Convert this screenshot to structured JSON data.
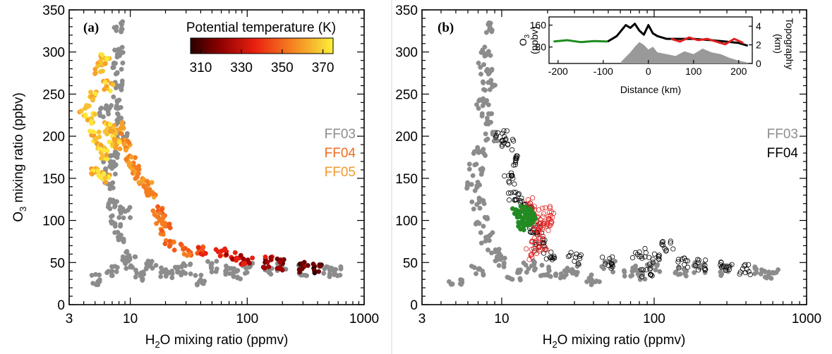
{
  "chart_data": [
    {
      "type": "scatter",
      "panel_label": "(a)",
      "xlabel_main": "H",
      "xlabel_sub": "2",
      "xlabel_rest": "O mixing ratio (ppmv)",
      "ylabel_main": "O",
      "ylabel_sub": "3",
      "ylabel_rest": " mixing ratio (ppbv)",
      "x_scale": "log",
      "xlim": [
        3,
        1000
      ],
      "ylim": [
        0,
        350
      ],
      "x_ticks": [
        "3",
        "10",
        "100",
        "1000"
      ],
      "x_tick_values": [
        3,
        10,
        100,
        1000
      ],
      "y_ticks": [
        "0",
        "50",
        "100",
        "150",
        "200",
        "250",
        "300",
        "350"
      ],
      "y_tick_values": [
        0,
        50,
        100,
        150,
        200,
        250,
        300,
        350
      ],
      "colorbar": {
        "title": "Potential temperature (K)",
        "ticks": [
          "310",
          "330",
          "350",
          "370"
        ],
        "range": [
          305,
          375
        ]
      },
      "legend": [
        {
          "label": "FF03",
          "color": "#8c8c8c"
        },
        {
          "label": "FF04",
          "color": "#f26b1d"
        },
        {
          "label": "FF05",
          "color": "#f39a2e"
        }
      ],
      "series": [
        {
          "name": "FF03",
          "color": "#8c8c8c",
          "points": [
            [
              8,
              330
            ],
            [
              8,
              300
            ],
            [
              7.8,
              280
            ],
            [
              8.2,
              260
            ],
            [
              7.5,
              240
            ],
            [
              8,
              220
            ],
            [
              8.5,
              200
            ],
            [
              7.2,
              180
            ],
            [
              6.8,
              160
            ],
            [
              6.5,
              140
            ],
            [
              7,
              120
            ],
            [
              7.5,
              100
            ],
            [
              8,
              80
            ],
            [
              9,
              60
            ],
            [
              10,
              50
            ],
            [
              15,
              45
            ],
            [
              20,
              40
            ],
            [
              30,
              42
            ],
            [
              50,
              45
            ],
            [
              70,
              40
            ],
            [
              100,
              42
            ],
            [
              150,
              40
            ],
            [
              200,
              45
            ],
            [
              300,
              40
            ],
            [
              500,
              38
            ],
            [
              600,
              38
            ],
            [
              5,
              30
            ],
            [
              7,
              40
            ],
            [
              12,
              35
            ],
            [
              25,
              38
            ],
            [
              40,
              30
            ],
            [
              80,
              35
            ],
            [
              6,
              230
            ],
            [
              6.5,
              170
            ],
            [
              9,
              110
            ]
          ]
        },
        {
          "name": "FF04",
          "color": "#e03010",
          "points": [
            [
              8,
              210
            ],
            [
              9,
              190
            ],
            [
              10,
              170
            ],
            [
              11,
              160
            ],
            [
              12,
              150
            ],
            [
              14,
              140
            ],
            [
              15,
              130
            ],
            [
              17,
              110
            ],
            [
              18,
              100
            ],
            [
              20,
              90
            ],
            [
              22,
              70
            ],
            [
              30,
              65
            ],
            [
              40,
              62
            ],
            [
              60,
              60
            ],
            [
              80,
              55
            ],
            [
              100,
              52
            ],
            [
              150,
              50
            ],
            [
              200,
              48
            ],
            [
              300,
              45
            ],
            [
              400,
              42
            ]
          ]
        },
        {
          "name": "FF05",
          "color": "#f5c031",
          "points": [
            [
              4,
              230
            ],
            [
              4.5,
              220
            ],
            [
              5,
              250
            ],
            [
              5.5,
              280
            ],
            [
              6,
              290
            ],
            [
              6.5,
              260
            ],
            [
              5,
              200
            ],
            [
              5.5,
              190
            ],
            [
              6,
              180
            ],
            [
              6.5,
              210
            ],
            [
              7,
              200
            ],
            [
              7.5,
              190
            ],
            [
              6,
              150
            ],
            [
              5,
              160
            ]
          ]
        }
      ]
    },
    {
      "type": "scatter",
      "panel_label": "(b)",
      "xlabel_main": "H",
      "xlabel_sub": "2",
      "xlabel_rest": "O mixing ratio (ppmv)",
      "x_scale": "log",
      "xlim": [
        3,
        1000
      ],
      "ylim": [
        0,
        350
      ],
      "x_ticks": [
        "3",
        "10",
        "100",
        "1000"
      ],
      "x_tick_values": [
        3,
        10,
        100,
        1000
      ],
      "legend": [
        {
          "label": "FF03",
          "color": "#8c8c8c"
        },
        {
          "label": "FF04",
          "color": "#000000"
        }
      ],
      "series": [
        {
          "name": "FF03",
          "color": "#8c8c8c",
          "points": [
            [
              8,
              330
            ],
            [
              8,
              300
            ],
            [
              7.8,
              280
            ],
            [
              8.2,
              260
            ],
            [
              7.5,
              240
            ],
            [
              8,
              220
            ],
            [
              8.5,
              200
            ],
            [
              7.2,
              180
            ],
            [
              6.8,
              160
            ],
            [
              6.5,
              140
            ],
            [
              7,
              120
            ],
            [
              7.5,
              100
            ],
            [
              8,
              80
            ],
            [
              9,
              60
            ],
            [
              10,
              50
            ],
            [
              15,
              45
            ],
            [
              20,
              40
            ],
            [
              30,
              42
            ],
            [
              50,
              45
            ],
            [
              70,
              40
            ],
            [
              100,
              42
            ],
            [
              150,
              40
            ],
            [
              200,
              45
            ],
            [
              300,
              40
            ],
            [
              500,
              38
            ],
            [
              600,
              38
            ],
            [
              5,
              30
            ],
            [
              7,
              40
            ],
            [
              12,
              35
            ],
            [
              25,
              38
            ],
            [
              40,
              30
            ],
            [
              80,
              35
            ]
          ]
        },
        {
          "name": "FF04",
          "color": "#000000",
          "points": [
            [
              10,
              200
            ],
            [
              11,
              190
            ],
            [
              12,
              170
            ],
            [
              11,
              150
            ],
            [
              12,
              130
            ],
            [
              13,
              120
            ],
            [
              15,
              110
            ],
            [
              16,
              90
            ],
            [
              17,
              80
            ],
            [
              18,
              70
            ],
            [
              20,
              60
            ],
            [
              30,
              55
            ],
            [
              50,
              50
            ],
            [
              80,
              60
            ],
            [
              100,
              55
            ],
            [
              150,
              50
            ],
            [
              200,
              48
            ],
            [
              300,
              45
            ],
            [
              400,
              42
            ],
            [
              120,
              70
            ],
            [
              90,
              40
            ]
          ]
        },
        {
          "name": "",
          "color": "#e02020",
          "points": [
            [
              15,
              120
            ],
            [
              16,
              110
            ],
            [
              17,
              100
            ],
            [
              18,
              95
            ],
            [
              19,
              90
            ],
            [
              17,
              80
            ],
            [
              18,
              70
            ],
            [
              16,
              60
            ],
            [
              20,
              110
            ],
            [
              21,
              100
            ]
          ]
        },
        {
          "name": "",
          "color": "#228b22",
          "points": [
            [
              13,
              110
            ],
            [
              14,
              105
            ],
            [
              15,
              100
            ],
            [
              14,
              95
            ],
            [
              13.5,
              102
            ],
            [
              15.5,
              108
            ]
          ]
        }
      ],
      "inset": {
        "xlabel": "Distance (km)",
        "ylabel_main": "O",
        "ylabel_sub": "3",
        "ylabel_rest": "(ppbv)",
        "y2label_line1": "Topography",
        "y2label_line2": "(km)",
        "xlim": [
          -220,
          230
        ],
        "ylim": [
          20,
          190
        ],
        "y2lim": [
          0,
          5
        ],
        "x_ticks": [
          "-200",
          "-100",
          "0",
          "100",
          "200"
        ],
        "x_tick_values": [
          -200,
          -100,
          0,
          100,
          200
        ],
        "y_ticks": [
          "160",
          "80"
        ],
        "y_tick_values": [
          160,
          80
        ],
        "y2_ticks": [
          "4",
          "2",
          "0"
        ],
        "y2_tick_values": [
          4,
          2,
          0
        ],
        "green": [
          [
            -210,
            100
          ],
          [
            -180,
            105
          ],
          [
            -150,
            98
          ],
          [
            -120,
            102
          ],
          [
            -90,
            100
          ]
        ],
        "black": [
          [
            -90,
            100
          ],
          [
            -70,
            120
          ],
          [
            -50,
            160
          ],
          [
            -40,
            150
          ],
          [
            -30,
            165
          ],
          [
            -20,
            140
          ],
          [
            -10,
            125
          ],
          [
            0,
            160
          ],
          [
            10,
            130
          ],
          [
            20,
            120
          ],
          [
            40,
            110
          ],
          [
            60,
            110
          ],
          [
            100,
            110
          ],
          [
            140,
            105
          ],
          [
            170,
            100
          ],
          [
            200,
            95
          ],
          [
            220,
            85
          ]
        ],
        "red": [
          [
            50,
            110
          ],
          [
            70,
            100
          ],
          [
            90,
            115
          ],
          [
            110,
            105
          ],
          [
            130,
            110
          ],
          [
            150,
            100
          ],
          [
            170,
            90
          ],
          [
            190,
            110
          ],
          [
            210,
            95
          ]
        ],
        "topography": [
          [
            -60,
            0.2
          ],
          [
            -40,
            1.2
          ],
          [
            -30,
            1.8
          ],
          [
            -20,
            2.3
          ],
          [
            -10,
            2.0
          ],
          [
            0,
            1.5
          ],
          [
            10,
            1.8
          ],
          [
            20,
            1.2
          ],
          [
            40,
            1.0
          ],
          [
            60,
            0.8
          ],
          [
            80,
            1.3
          ],
          [
            100,
            1.0
          ],
          [
            120,
            1.6
          ],
          [
            140,
            1.2
          ],
          [
            160,
            1.0
          ],
          [
            180,
            0.6
          ],
          [
            200,
            0.3
          ],
          [
            220,
            0.1
          ]
        ]
      }
    }
  ]
}
